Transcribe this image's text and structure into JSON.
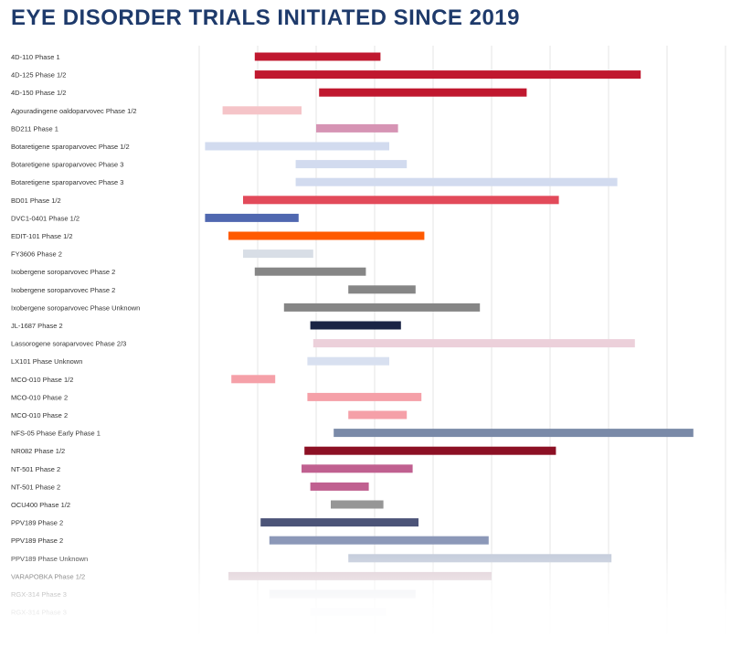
{
  "chart_data": {
    "type": "bar",
    "title": "EYE DISORDER TRIALS INITIATED SINCE 2019",
    "grid": true,
    "rows": [
      {
        "label": "4D-110 Phase 1",
        "start": 2019.95,
        "end": 2022.1,
        "color": "#c0182f"
      },
      {
        "label": "4D-125 Phase 1/2",
        "start": 2019.95,
        "end": 2026.55,
        "color": "#c0182f"
      },
      {
        "label": "4D-150 Phase 1/2",
        "start": 2021.05,
        "end": 2024.6,
        "color": "#c0182f"
      },
      {
        "label": "Agouradingene oaldoparvovec Phase 1/2",
        "start": 2019.4,
        "end": 2020.75,
        "color": "#f5c4c8"
      },
      {
        "label": "BD211 Phase 1",
        "start": 2021.0,
        "end": 2022.4,
        "color": "#d694b4"
      },
      {
        "label": "Botaretigene sparoparvovec Phase 1/2",
        "start": 2019.1,
        "end": 2022.25,
        "color": "#d2dbef"
      },
      {
        "label": "Botaretigene sparoparvovec Phase 3",
        "start": 2020.65,
        "end": 2022.55,
        "color": "#d2dbef"
      },
      {
        "label": "Botaretigene sparoparvovec Phase 3",
        "start": 2020.65,
        "end": 2026.15,
        "color": "#d2dbef"
      },
      {
        "label": "BD01 Phase 1/2",
        "start": 2019.75,
        "end": 2025.15,
        "color": "#e24a5a"
      },
      {
        "label": "DVC1-0401 Phase 1/2",
        "start": 2019.1,
        "end": 2020.7,
        "color": "#5068b0"
      },
      {
        "label": "EDIT-101 Phase 1/2",
        "start": 2019.5,
        "end": 2022.85,
        "color": "#ff5a00"
      },
      {
        "label": "FY3606 Phase 2",
        "start": 2019.75,
        "end": 2020.95,
        "color": "#d8dee6"
      },
      {
        "label": "Ixobergene soroparvovec Phase 2",
        "start": 2019.95,
        "end": 2021.85,
        "color": "#868686"
      },
      {
        "label": "Ixobergene soroparvovec Phase 2",
        "start": 2021.55,
        "end": 2022.7,
        "color": "#868686"
      },
      {
        "label": "Ixobergene soroparvovec Phase Unknown",
        "start": 2020.45,
        "end": 2023.8,
        "color": "#868686"
      },
      {
        "label": "JL-1687 Phase 2",
        "start": 2020.9,
        "end": 2022.45,
        "color": "#1a2445"
      },
      {
        "label": "Lassorogene soraparvovec Phase 2/3",
        "start": 2020.95,
        "end": 2026.45,
        "color": "#ecd0da"
      },
      {
        "label": "LX101 Phase Unknown",
        "start": 2020.85,
        "end": 2022.25,
        "color": "#d8e0f0"
      },
      {
        "label": "MCO-010 Phase 1/2",
        "start": 2019.55,
        "end": 2020.3,
        "color": "#f5a0a8"
      },
      {
        "label": "MCO-010 Phase 2",
        "start": 2020.85,
        "end": 2022.8,
        "color": "#f5a0a8"
      },
      {
        "label": "MCO-010 Phase 2",
        "start": 2021.55,
        "end": 2022.55,
        "color": "#f5a0a8"
      },
      {
        "label": "NFS-05 Phase Early Phase 1",
        "start": 2021.3,
        "end": 2027.45,
        "color": "#7a8aa8"
      },
      {
        "label": "NR082 Phase 1/2",
        "start": 2020.8,
        "end": 2025.1,
        "color": "#8c1024"
      },
      {
        "label": "NT-501 Phase 2",
        "start": 2020.75,
        "end": 2022.65,
        "color": "#c06090"
      },
      {
        "label": "NT-501 Phase 2",
        "start": 2020.9,
        "end": 2021.9,
        "color": "#c06090"
      },
      {
        "label": "OCU400 Phase 1/2",
        "start": 2021.25,
        "end": 2022.15,
        "color": "#969696"
      },
      {
        "label": "PPV189 Phase 2",
        "start": 2020.05,
        "end": 2022.75,
        "color": "#4c5478"
      },
      {
        "label": "PPV189 Phase 2",
        "start": 2020.2,
        "end": 2023.95,
        "color": "#8c98b8"
      },
      {
        "label": "PPV189 Phase Unknown",
        "start": 2021.55,
        "end": 2026.05,
        "color": "#c0c8d8"
      },
      {
        "label": "VARAPOBKA Phase 1/2",
        "start": 2019.5,
        "end": 2024.0,
        "color": "#d8c4cc"
      },
      {
        "label": "RGX-314 Phase 3",
        "start": 2020.2,
        "end": 2022.7,
        "color": "#e6e8ee"
      },
      {
        "label": "RGX-314 Phase 3",
        "start": 2020.9,
        "end": 2022.2,
        "color": "#eef0f4"
      }
    ]
  }
}
